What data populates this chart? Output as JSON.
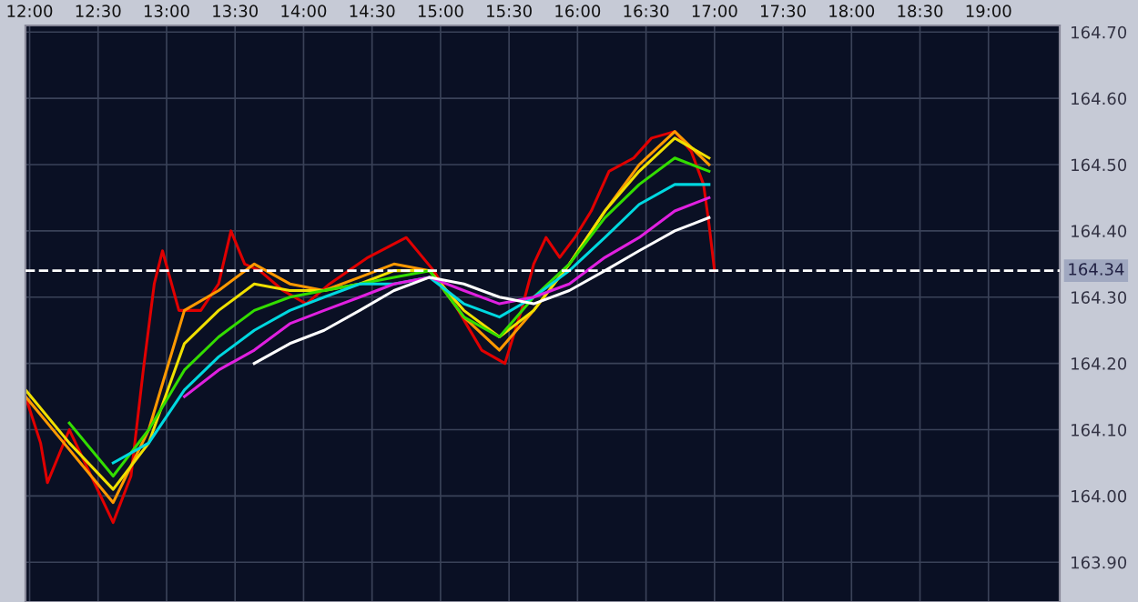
{
  "chart_data": {
    "type": "line",
    "xlim": [
      11.97,
      19.52
    ],
    "ylim": [
      163.84,
      164.71
    ],
    "xticks": [
      {
        "value": 12.0,
        "label": "12:00"
      },
      {
        "value": 12.5,
        "label": "12:30"
      },
      {
        "value": 13.0,
        "label": "13:00"
      },
      {
        "value": 13.5,
        "label": "13:30"
      },
      {
        "value": 14.0,
        "label": "14:00"
      },
      {
        "value": 14.5,
        "label": "14:30"
      },
      {
        "value": 15.0,
        "label": "15:00"
      },
      {
        "value": 15.5,
        "label": "15:30"
      },
      {
        "value": 16.0,
        "label": "16:00"
      },
      {
        "value": 16.5,
        "label": "16:30"
      },
      {
        "value": 17.0,
        "label": "17:00"
      },
      {
        "value": 17.5,
        "label": "17:30"
      },
      {
        "value": 18.0,
        "label": "18:00"
      },
      {
        "value": 18.5,
        "label": "18:30"
      },
      {
        "value": 19.0,
        "label": "19:00"
      }
    ],
    "yticks": [
      {
        "value": 163.9,
        "label": "163.90"
      },
      {
        "value": 164.0,
        "label": "164.00"
      },
      {
        "value": 164.1,
        "label": "164.10"
      },
      {
        "value": 164.2,
        "label": "164.20"
      },
      {
        "value": 164.3,
        "label": "164.30"
      },
      {
        "value": 164.4,
        "label": "164.40"
      },
      {
        "value": 164.5,
        "label": "164.50"
      },
      {
        "value": 164.6,
        "label": "164.60"
      },
      {
        "value": 164.7,
        "label": "164.70"
      }
    ],
    "grid": true,
    "ref_lines": [
      {
        "axis": "y",
        "value": 164.34,
        "label": "164.34",
        "color": "#ffffff",
        "line_style": "dashed"
      }
    ],
    "series": [
      {
        "color": "#e00000",
        "x": [
          11.97,
          12.08,
          12.13,
          12.29,
          12.45,
          12.61,
          12.74,
          12.83,
          12.91,
          12.97,
          13.09,
          13.25,
          13.38,
          13.47,
          13.57,
          13.68,
          13.85,
          14.02,
          14.19,
          14.47,
          14.75,
          14.95,
          15.13,
          15.3,
          15.47,
          15.59,
          15.68,
          15.77,
          15.87,
          15.98,
          16.1,
          16.23,
          16.41,
          16.54,
          16.71,
          16.83,
          16.92,
          16.96,
          17.0
        ],
        "values": [
          164.15,
          164.08,
          164.02,
          164.1,
          164.03,
          163.96,
          164.03,
          164.19,
          164.32,
          164.37,
          164.28,
          164.28,
          164.32,
          164.4,
          164.35,
          164.34,
          164.31,
          164.29,
          164.32,
          164.36,
          164.39,
          164.34,
          164.28,
          164.22,
          164.2,
          164.28,
          164.35,
          164.39,
          164.36,
          164.39,
          164.43,
          164.49,
          164.51,
          164.54,
          164.55,
          164.52,
          164.47,
          164.41,
          164.34
        ]
      },
      {
        "color": "#ff9900",
        "values": [
          164.15,
          164.07,
          163.99,
          164.1,
          164.28,
          164.31,
          164.35,
          164.32,
          164.31,
          164.33,
          164.35,
          164.34,
          164.27,
          164.22,
          164.28,
          164.35,
          164.43,
          164.5,
          164.55,
          164.5
        ]
      },
      {
        "color": "#f0e000",
        "values": [
          164.16,
          164.08,
          164.01,
          164.08,
          164.23,
          164.28,
          164.32,
          164.31,
          164.31,
          164.32,
          164.34,
          164.34,
          164.28,
          164.24,
          164.28,
          164.35,
          164.43,
          164.49,
          164.54,
          164.51
        ]
      },
      {
        "color": "#33dd00",
        "values": [
          null,
          164.11,
          164.03,
          164.1,
          164.19,
          164.24,
          164.28,
          164.3,
          164.31,
          164.32,
          164.33,
          164.34,
          164.27,
          164.24,
          164.3,
          164.35,
          164.42,
          164.47,
          164.51,
          164.49
        ]
      },
      {
        "color": "#00d8e0",
        "values": [
          null,
          null,
          164.05,
          164.08,
          164.16,
          164.21,
          164.25,
          164.28,
          164.3,
          164.32,
          164.32,
          164.33,
          164.29,
          164.27,
          164.3,
          164.34,
          164.39,
          164.44,
          164.47,
          164.47
        ]
      },
      {
        "color": "#e020e0",
        "values": [
          null,
          null,
          null,
          null,
          164.15,
          164.19,
          164.22,
          164.26,
          164.28,
          164.3,
          164.32,
          164.33,
          164.31,
          164.29,
          164.3,
          164.32,
          164.36,
          164.39,
          164.43,
          164.45
        ]
      },
      {
        "color": "#ffffff",
        "values": [
          null,
          null,
          null,
          null,
          null,
          null,
          164.2,
          164.23,
          164.25,
          164.28,
          164.31,
          164.33,
          164.32,
          164.3,
          164.29,
          164.31,
          164.34,
          164.37,
          164.4,
          164.42
        ]
      }
    ],
    "x": [
      11.97,
      12.29,
      12.61,
      12.87,
      13.13,
      13.38,
      13.64,
      13.9,
      14.15,
      14.41,
      14.66,
      14.92,
      15.17,
      15.43,
      15.68,
      15.94,
      16.2,
      16.45,
      16.71,
      16.96
    ]
  }
}
